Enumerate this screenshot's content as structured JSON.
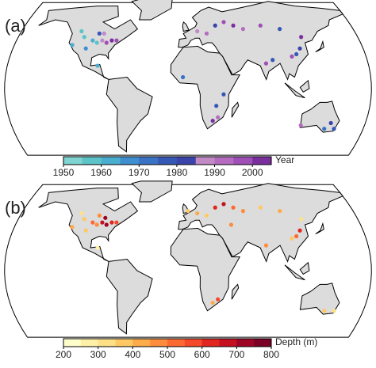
{
  "chart_data": [
    {
      "type": "map",
      "panel_label": "(a)",
      "colorbar_label": "Year",
      "clim": [
        1950,
        2005
      ],
      "cticks": [
        1950,
        1960,
        1970,
        1980,
        1990,
        2000
      ],
      "colors": [
        "#7fd3d0",
        "#5cc3c8",
        "#4aaed0",
        "#3f8fd0",
        "#3a72c4",
        "#3558b5",
        "#3a44a8",
        "#c18ac5",
        "#b56cc0",
        "#9f4fb5",
        "#7b2f9f"
      ],
      "lon": [
        -95,
        -100,
        -110,
        -120,
        -105,
        -90,
        -85,
        -80,
        -75,
        -95,
        -115,
        -90,
        10,
        20,
        30,
        40,
        50,
        60,
        80,
        100,
        110,
        115,
        105,
        120,
        78,
        85,
        30,
        25,
        28,
        -5,
        35,
        145,
        150,
        140,
        115,
        -90
      ],
      "lat": [
        40,
        42,
        45,
        38,
        35,
        42,
        40,
        42,
        42,
        48,
        50,
        48,
        50,
        48,
        55,
        58,
        55,
        52,
        55,
        52,
        30,
        35,
        28,
        45,
        22,
        25,
        -25,
        -28,
        -15,
        10,
        -5,
        -30,
        -35,
        -35,
        -32,
        20
      ],
      "values": [
        1955,
        1960,
        1958,
        1962,
        1965,
        1985,
        1995,
        2000,
        1998,
        1975,
        1958,
        1985,
        1985,
        1990,
        1980,
        1998,
        2002,
        1992,
        1995,
        1978,
        1975,
        1982,
        1995,
        2000,
        1995,
        1975,
        1990,
        2000,
        1975,
        1970,
        1975,
        1980,
        1975,
        1970,
        1990,
        1960
      ]
    },
    {
      "type": "map",
      "panel_label": "(b)",
      "colorbar_label": "Depth (m)",
      "clim": [
        200,
        800
      ],
      "cticks": [
        200,
        300,
        400,
        500,
        600,
        700,
        800
      ],
      "colors": [
        "#ffffcc",
        "#fff0a8",
        "#fee187",
        "#fec965",
        "#feab4b",
        "#fd8d3c",
        "#fc6a32",
        "#f4492a",
        "#e0261f",
        "#c4101f",
        "#9e0426",
        "#7a0026"
      ],
      "lon": [
        -95,
        -100,
        -110,
        -120,
        -105,
        -90,
        -85,
        -80,
        -75,
        -95,
        -115,
        -88,
        10,
        20,
        30,
        40,
        50,
        60,
        80,
        100,
        110,
        115,
        105,
        120,
        78,
        30,
        25,
        150,
        140,
        -90,
        45,
        0
      ],
      "lat": [
        40,
        42,
        45,
        38,
        35,
        42,
        40,
        42,
        42,
        48,
        50,
        46,
        50,
        48,
        55,
        58,
        55,
        52,
        55,
        52,
        30,
        35,
        28,
        45,
        22,
        -25,
        -28,
        -35,
        -35,
        20,
        40,
        52
      ],
      "values": [
        450,
        520,
        380,
        420,
        350,
        650,
        700,
        600,
        550,
        480,
        300,
        720,
        400,
        350,
        600,
        650,
        500,
        450,
        350,
        400,
        500,
        600,
        350,
        300,
        450,
        550,
        400,
        300,
        350,
        250,
        450,
        380
      ]
    }
  ]
}
